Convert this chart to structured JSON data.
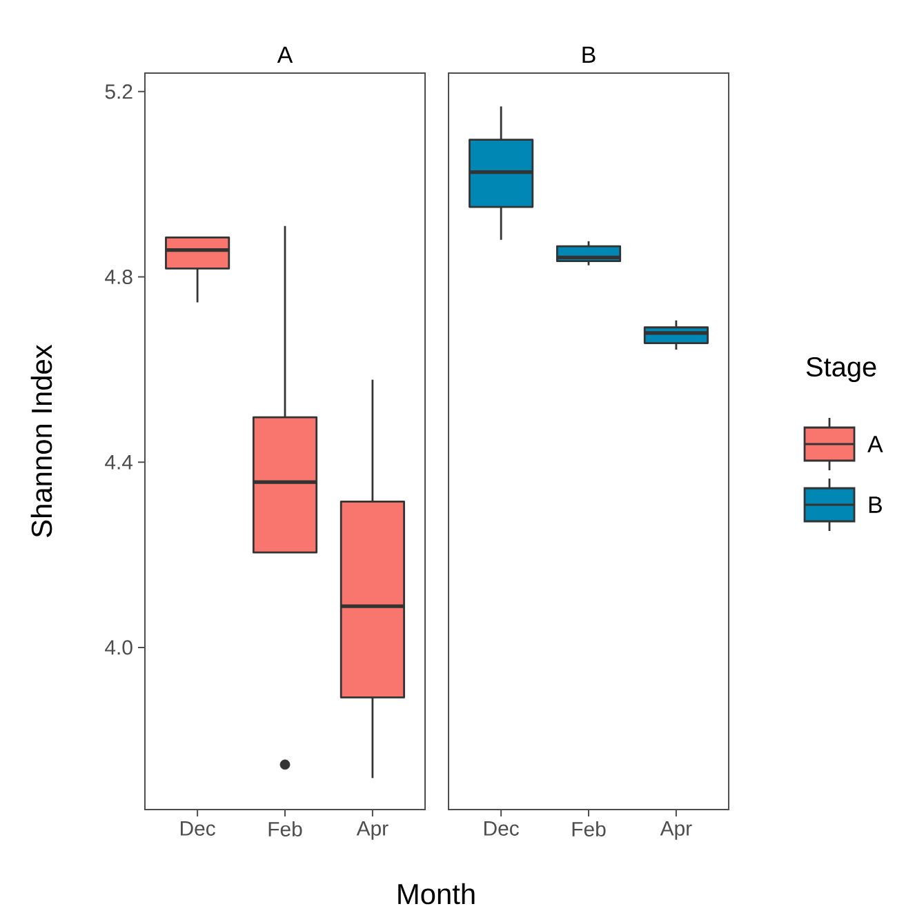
{
  "chart_data": [
    {
      "type": "box",
      "title": "A",
      "xlabel": "Month",
      "ylabel": "Shannon Index",
      "categories": [
        "Dec",
        "Feb",
        "Apr"
      ],
      "ylim": [
        3.65,
        5.24
      ],
      "yticks": [
        {
          "value": 4,
          "label": "4.0"
        },
        4.4,
        4.8,
        5.2
      ],
      "grid": false,
      "series": [
        {
          "name": "A",
          "color": "#f8766d",
          "boxes": [
            {
              "low": 4.745,
              "q1": 4.818,
              "median": 4.858,
              "q3": 4.885,
              "high": 4.885
            },
            {
              "low": 4.205,
              "q1": 4.205,
              "median": 4.357,
              "q3": 4.497,
              "high": 4.91,
              "outliers": [
                3.747
              ]
            },
            {
              "low": 3.718,
              "q1": 3.892,
              "median": 4.089,
              "q3": 4.315,
              "high": 4.578
            }
          ]
        }
      ]
    },
    {
      "type": "box",
      "title": "B",
      "categories": [
        "Dec",
        "Feb",
        "Apr"
      ],
      "ylim": [
        3.65,
        5.24
      ],
      "tick_labels": "x",
      "grid": false,
      "legend": "right",
      "legend_title": "Stage",
      "series": [
        {
          "name": "B",
          "color": "#0087b3",
          "boxes": [
            {
              "low": 4.88,
              "q1": 4.951,
              "median": 5.026,
              "q3": 5.096,
              "high": 5.168
            },
            {
              "low": 4.825,
              "q1": 4.834,
              "median": 4.842,
              "q3": 4.866,
              "high": 4.877
            },
            {
              "low": 4.643,
              "q1": 4.657,
              "median": 4.679,
              "q3": 4.691,
              "high": 4.706
            }
          ]
        }
      ]
    }
  ]
}
